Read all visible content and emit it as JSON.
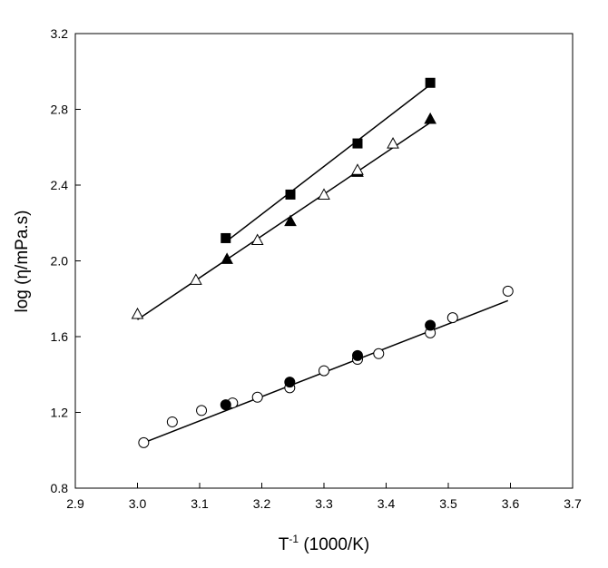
{
  "chart_data": {
    "type": "scatter",
    "title": "",
    "xlabel": "T-1 (1000/K)",
    "xlabel_base": "T",
    "xlabel_sup": "-1",
    "xlabel_rest": " (1000/K)",
    "ylabel": "log (η/mPa.s)",
    "xlim": [
      2.9,
      3.7
    ],
    "ylim": [
      0.8,
      3.2
    ],
    "xticks": [
      "2.9",
      "3.0",
      "3.1",
      "3.2",
      "3.3",
      "3.4",
      "3.5",
      "3.6",
      "3.7"
    ],
    "yticks": [
      "0.8",
      "1.2",
      "1.6",
      "2.0",
      "2.4",
      "2.8",
      "3.2"
    ],
    "grid": false,
    "series": [
      {
        "name": "filled squares",
        "marker": "square-filled",
        "x": [
          3.142,
          3.246,
          3.354,
          3.471
        ],
        "y": [
          2.12,
          2.35,
          2.62,
          2.94
        ]
      },
      {
        "name": "filled triangles",
        "marker": "triangle-filled",
        "x": [
          3.144,
          3.246,
          3.354,
          3.471
        ],
        "y": [
          2.01,
          2.21,
          2.47,
          2.75
        ]
      },
      {
        "name": "open triangles",
        "marker": "triangle-open",
        "x": [
          3.0,
          3.094,
          3.193,
          3.3,
          3.354,
          3.411
        ],
        "y": [
          1.72,
          1.9,
          2.11,
          2.35,
          2.48,
          2.62
        ]
      },
      {
        "name": "open circles",
        "marker": "circle-open",
        "x": [
          3.01,
          3.056,
          3.103,
          3.153,
          3.193,
          3.245,
          3.3,
          3.354,
          3.388,
          3.471,
          3.507,
          3.596
        ],
        "y": [
          1.04,
          1.15,
          1.21,
          1.25,
          1.28,
          1.33,
          1.42,
          1.48,
          1.51,
          1.62,
          1.7,
          1.84
        ]
      },
      {
        "name": "filled circles",
        "marker": "circle-filled",
        "x": [
          3.142,
          3.245,
          3.354,
          3.471
        ],
        "y": [
          1.24,
          1.36,
          1.5,
          1.66
        ]
      }
    ],
    "fit_lines": [
      {
        "name": "squares fit",
        "x": [
          3.142,
          3.471
        ],
        "y": [
          2.1,
          2.93
        ]
      },
      {
        "name": "triangles fit",
        "x": [
          3.0,
          3.471
        ],
        "y": [
          1.69,
          2.73
        ]
      },
      {
        "name": "circles fit",
        "x": [
          3.01,
          3.596
        ],
        "y": [
          1.04,
          1.79
        ]
      }
    ]
  }
}
